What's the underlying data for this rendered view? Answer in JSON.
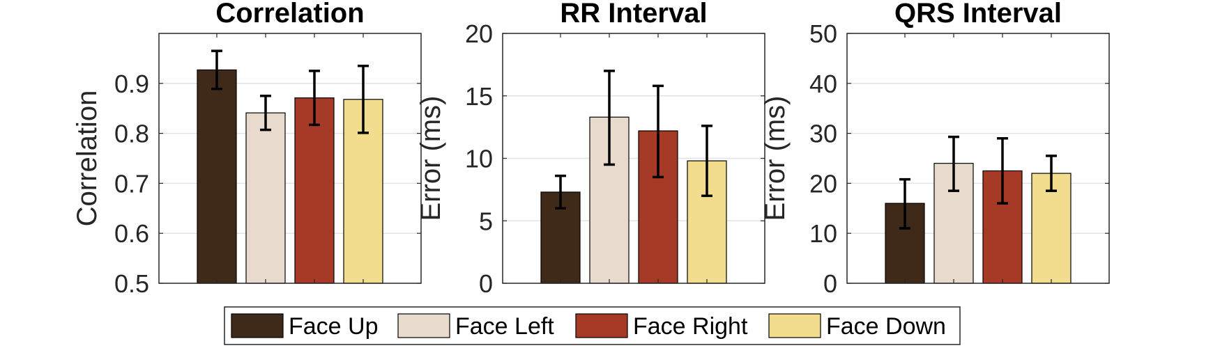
{
  "chart_data": [
    {
      "type": "bar",
      "title": "Correlation",
      "ylabel": "Correlation",
      "ylim": [
        0.5,
        1.0
      ],
      "yticks": [
        "0.5",
        "0.6",
        "0.7",
        "0.8",
        "0.9"
      ],
      "ytick_values": [
        0.5,
        0.6,
        0.7,
        0.8,
        0.9
      ],
      "categories": [
        "Face Up",
        "Face Left",
        "Face Right",
        "Face Down"
      ],
      "values": [
        0.927,
        0.841,
        0.871,
        0.868
      ],
      "error_low": [
        0.889,
        0.807,
        0.817,
        0.801
      ],
      "error_high": [
        0.965,
        0.875,
        0.925,
        0.935
      ],
      "grid": true
    },
    {
      "type": "bar",
      "title": "RR Interval",
      "ylabel": "Error (ms)",
      "ylim": [
        0,
        20
      ],
      "yticks": [
        "0",
        "5",
        "10",
        "15",
        "20"
      ],
      "ytick_values": [
        0,
        5,
        10,
        15,
        20
      ],
      "categories": [
        "Face Up",
        "Face Left",
        "Face Right",
        "Face Down"
      ],
      "values": [
        7.3,
        13.3,
        12.2,
        9.8
      ],
      "error_low": [
        6.0,
        9.5,
        8.5,
        7.0
      ],
      "error_high": [
        8.6,
        17.0,
        15.8,
        12.6
      ],
      "grid": true
    },
    {
      "type": "bar",
      "title": "QRS Interval",
      "ylabel": "Error (ms)",
      "ylim": [
        0,
        50
      ],
      "yticks": [
        "0",
        "10",
        "20",
        "30",
        "40",
        "50"
      ],
      "ytick_values": [
        0,
        10,
        20,
        30,
        40,
        50
      ],
      "categories": [
        "Face Up",
        "Face Left",
        "Face Right",
        "Face Down"
      ],
      "values": [
        16.0,
        24.0,
        22.5,
        22.0
      ],
      "error_low": [
        11.0,
        18.5,
        16.0,
        18.5
      ],
      "error_high": [
        20.8,
        29.3,
        29.0,
        25.5
      ],
      "grid": true
    }
  ],
  "legend": {
    "placement": "bottom",
    "items": [
      {
        "label": "Face Up",
        "color": "#3f2a1a"
      },
      {
        "label": "Face Left",
        "color": "#e8dbcd"
      },
      {
        "label": "Face Right",
        "color": "#a63a26"
      },
      {
        "label": "Face Down",
        "color": "#f2dd8e"
      }
    ]
  }
}
